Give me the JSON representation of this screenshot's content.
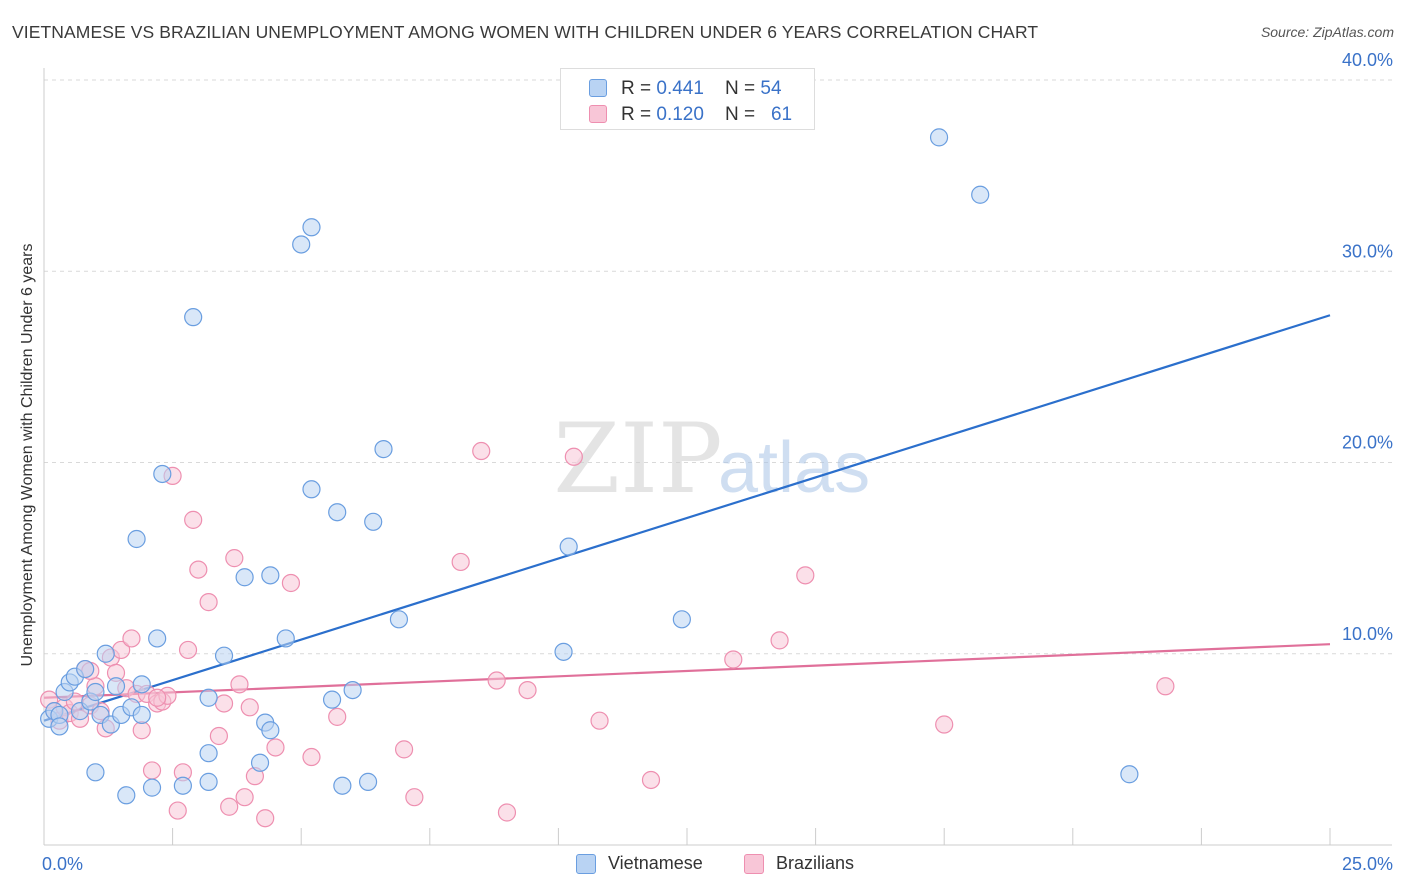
{
  "title": "VIETNAMESE VS BRAZILIAN UNEMPLOYMENT AMONG WOMEN WITH CHILDREN UNDER 6 YEARS CORRELATION CHART",
  "source": "Source: ZipAtlas.com",
  "watermark": {
    "zip": "ZIP",
    "atlas": "atlas"
  },
  "legend_top": {
    "rows": [
      {
        "r_label": "R = ",
        "r_value": "0.441",
        "n_label": "N = ",
        "n_value": "54"
      },
      {
        "r_label": "R = ",
        "r_value": "0.120",
        "n_label": "N = ",
        "n_value": "61"
      }
    ]
  },
  "chart_data": {
    "type": "scatter",
    "title": "VIETNAMESE VS BRAZILIAN UNEMPLOYMENT AMONG WOMEN WITH CHILDREN UNDER 6 YEARS CORRELATION CHART",
    "xlabel": "",
    "ylabel": "Unemployment Among Women with Children Under 6 years",
    "xlim": [
      0,
      25
    ],
    "ylim": [
      0,
      40
    ],
    "x_tick_labels": [
      "0.0%",
      "25.0%"
    ],
    "y_tick_labels": [
      "10.0%",
      "20.0%",
      "30.0%",
      "40.0%"
    ],
    "y_ticks": [
      10,
      20,
      30,
      40
    ],
    "grid": true,
    "legend_position": "bottom-center",
    "series": [
      {
        "name": "Vietnamese",
        "color": "#6a9ee0",
        "fill": "#b9d3f3",
        "trend": {
          "x": [
            0,
            25
          ],
          "y": [
            6.5,
            27.7
          ],
          "color": "#2b6fcc"
        },
        "points": [
          [
            0.1,
            6.6
          ],
          [
            0.2,
            7.0
          ],
          [
            0.3,
            6.8
          ],
          [
            0.4,
            8.0
          ],
          [
            0.5,
            8.5
          ],
          [
            0.6,
            8.8
          ],
          [
            0.7,
            7.0
          ],
          [
            0.8,
            9.2
          ],
          [
            0.9,
            7.5
          ],
          [
            1.0,
            8.0
          ],
          [
            1.1,
            6.8
          ],
          [
            1.2,
            10.0
          ],
          [
            1.3,
            6.3
          ],
          [
            1.4,
            8.3
          ],
          [
            1.5,
            6.8
          ],
          [
            1.6,
            2.6
          ],
          [
            1.7,
            7.2
          ],
          [
            1.8,
            16.0
          ],
          [
            1.9,
            6.8
          ],
          [
            1.9,
            8.4
          ],
          [
            2.1,
            3.0
          ],
          [
            2.2,
            10.8
          ],
          [
            2.3,
            19.4
          ],
          [
            2.7,
            3.1
          ],
          [
            2.9,
            27.6
          ],
          [
            3.2,
            3.3
          ],
          [
            3.2,
            7.7
          ],
          [
            3.5,
            9.9
          ],
          [
            3.9,
            14.0
          ],
          [
            4.2,
            4.3
          ],
          [
            4.3,
            6.4
          ],
          [
            4.4,
            6.0
          ],
          [
            4.4,
            14.1
          ],
          [
            4.7,
            10.8
          ],
          [
            5.0,
            31.4
          ],
          [
            5.2,
            32.3
          ],
          [
            5.2,
            18.6
          ],
          [
            5.6,
            7.6
          ],
          [
            5.7,
            17.4
          ],
          [
            5.8,
            3.1
          ],
          [
            6.0,
            8.1
          ],
          [
            6.3,
            3.3
          ],
          [
            6.4,
            16.9
          ],
          [
            6.6,
            20.7
          ],
          [
            6.9,
            11.8
          ],
          [
            10.1,
            10.1
          ],
          [
            10.2,
            15.6
          ],
          [
            12.4,
            11.8
          ],
          [
            17.4,
            37.0
          ],
          [
            18.2,
            34.0
          ],
          [
            21.1,
            3.7
          ],
          [
            0.3,
            6.2
          ],
          [
            1.0,
            3.8
          ],
          [
            3.2,
            4.8
          ]
        ]
      },
      {
        "name": "Brazilians",
        "color": "#ee8fb0",
        "fill": "#f8c6d7",
        "trend": {
          "x": [
            0,
            25
          ],
          "y": [
            7.7,
            10.5
          ],
          "color": "#e0709a"
        },
        "points": [
          [
            0.1,
            7.6
          ],
          [
            0.2,
            7.0
          ],
          [
            0.3,
            6.5
          ],
          [
            0.4,
            7.2
          ],
          [
            0.5,
            6.9
          ],
          [
            0.6,
            7.5
          ],
          [
            0.7,
            6.6
          ],
          [
            0.8,
            9.2
          ],
          [
            0.9,
            7.3
          ],
          [
            1.0,
            8.3
          ],
          [
            1.1,
            7.0
          ],
          [
            1.2,
            6.1
          ],
          [
            1.3,
            9.8
          ],
          [
            1.4,
            9.0
          ],
          [
            1.5,
            10.2
          ],
          [
            1.6,
            8.2
          ],
          [
            1.7,
            10.8
          ],
          [
            1.8,
            7.9
          ],
          [
            1.9,
            6.0
          ],
          [
            2.0,
            7.9
          ],
          [
            2.1,
            3.9
          ],
          [
            2.2,
            7.4
          ],
          [
            2.3,
            7.5
          ],
          [
            2.4,
            7.8
          ],
          [
            2.5,
            19.3
          ],
          [
            2.6,
            1.8
          ],
          [
            2.7,
            3.8
          ],
          [
            2.8,
            10.2
          ],
          [
            2.9,
            17.0
          ],
          [
            3.0,
            14.4
          ],
          [
            3.2,
            12.7
          ],
          [
            3.4,
            5.7
          ],
          [
            3.5,
            7.4
          ],
          [
            3.6,
            2.0
          ],
          [
            3.7,
            15.0
          ],
          [
            3.8,
            8.4
          ],
          [
            3.9,
            2.5
          ],
          [
            4.0,
            7.2
          ],
          [
            4.1,
            3.6
          ],
          [
            4.3,
            1.4
          ],
          [
            4.5,
            5.1
          ],
          [
            4.8,
            13.7
          ],
          [
            5.2,
            4.6
          ],
          [
            5.7,
            6.7
          ],
          [
            7.0,
            5.0
          ],
          [
            7.2,
            2.5
          ],
          [
            8.1,
            14.8
          ],
          [
            8.5,
            20.6
          ],
          [
            8.8,
            8.6
          ],
          [
            9.0,
            1.7
          ],
          [
            9.4,
            8.1
          ],
          [
            10.3,
            20.3
          ],
          [
            10.8,
            6.5
          ],
          [
            11.8,
            3.4
          ],
          [
            13.4,
            9.7
          ],
          [
            14.3,
            10.7
          ],
          [
            14.8,
            14.1
          ],
          [
            17.5,
            6.3
          ],
          [
            21.8,
            8.3
          ],
          [
            0.9,
            9.1
          ],
          [
            2.2,
            7.7
          ]
        ]
      }
    ]
  },
  "bottom_legend": [
    {
      "label": "Vietnamese"
    },
    {
      "label": "Brazilians"
    }
  ],
  "colors": {
    "blue_accent": "#3a72c8",
    "blue_fill": "#b9d3f3",
    "pink_fill": "#f8c6d7",
    "grid": "#d9d9d9"
  }
}
